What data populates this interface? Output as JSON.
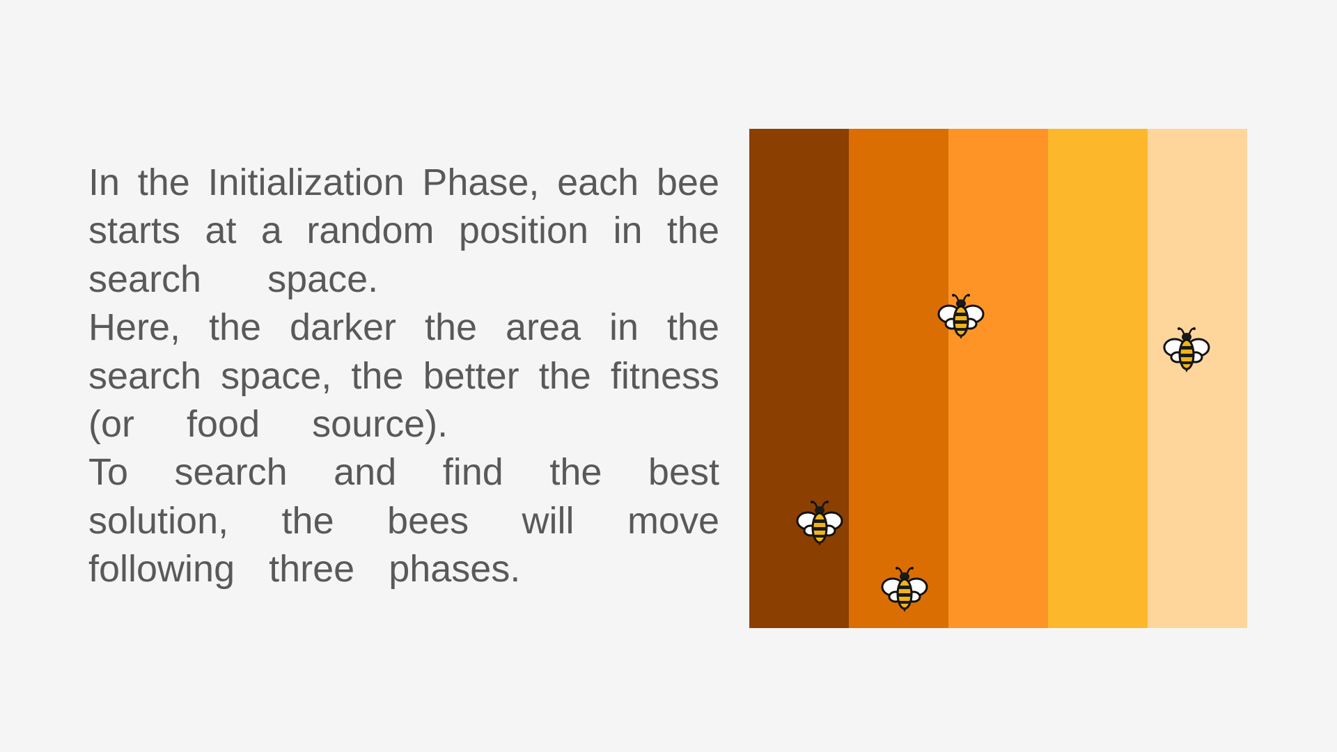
{
  "text": {
    "lines": [
      "In the Initialization Phase, each bee",
      "starts at a random position in the",
      "search space.",
      "Here, the darker the area in the",
      "search space, the better the fitness",
      "(or food source).",
      "To search and find the best",
      "solution, the bees will move",
      "following three phases."
    ]
  },
  "search_space": {
    "stripe_colors": [
      "#8b3f00",
      "#db6e03",
      "#fe9426",
      "#fdb72a",
      "#fed59b"
    ]
  },
  "bees": {
    "icon": "bee-icon",
    "count": 4,
    "colors": {
      "wing": "#ffffff",
      "body": "#f0b418",
      "stripe": "#1a1a1a",
      "outline": "#111111"
    }
  }
}
